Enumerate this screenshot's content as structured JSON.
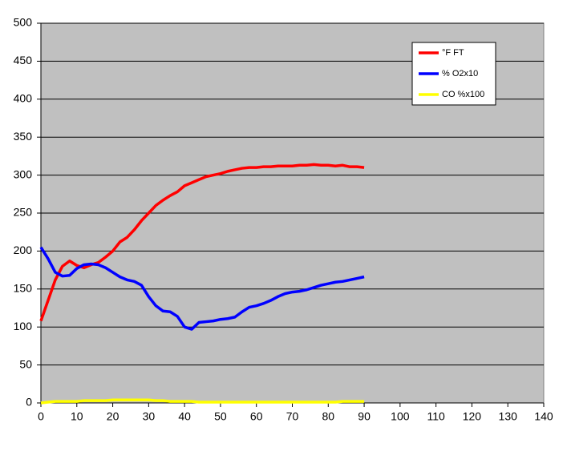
{
  "chart_data": {
    "type": "line",
    "x": [
      0,
      2,
      4,
      6,
      8,
      10,
      12,
      14,
      16,
      18,
      20,
      22,
      24,
      26,
      28,
      30,
      32,
      34,
      36,
      38,
      40,
      42,
      44,
      46,
      48,
      50,
      52,
      54,
      56,
      58,
      60,
      62,
      64,
      66,
      68,
      70,
      72,
      74,
      76,
      78,
      80,
      82,
      84,
      86,
      88,
      90
    ],
    "series": [
      {
        "name": "°F FT",
        "color": "#ff0000",
        "values": [
          108,
          135,
          162,
          180,
          187,
          181,
          178,
          182,
          185,
          192,
          200,
          212,
          218,
          228,
          240,
          250,
          260,
          267,
          273,
          278,
          286,
          290,
          294,
          298,
          300,
          302,
          305,
          307,
          309,
          310,
          310,
          311,
          311,
          312,
          312,
          312,
          313,
          313,
          314,
          313,
          313,
          312,
          313,
          311,
          311,
          310
        ]
      },
      {
        "name": "% O2x10",
        "color": "#0000ff",
        "values": [
          205,
          190,
          172,
          167,
          168,
          177,
          182,
          183,
          182,
          178,
          172,
          166,
          162,
          160,
          155,
          140,
          128,
          121,
          120,
          114,
          100,
          97,
          106,
          107,
          108,
          110,
          111,
          113,
          120,
          126,
          128,
          131,
          135,
          140,
          144,
          146,
          147,
          149,
          152,
          155,
          157,
          159,
          160,
          162,
          164,
          166
        ]
      },
      {
        "name": "CO %x100",
        "color": "#ffff00",
        "values": [
          0,
          1,
          2,
          2,
          2,
          2,
          3,
          3,
          3,
          3,
          4,
          4,
          4,
          4,
          4,
          4,
          3,
          3,
          2,
          2,
          2,
          2,
          1,
          1,
          1,
          1,
          1,
          1,
          1,
          1,
          1,
          1,
          1,
          1,
          1,
          1,
          1,
          1,
          1,
          1,
          1,
          1,
          2,
          2,
          2,
          2
        ]
      }
    ],
    "xlim": [
      0,
      140
    ],
    "xticks": [
      0,
      10,
      20,
      30,
      40,
      50,
      60,
      70,
      80,
      90,
      100,
      110,
      120,
      130,
      140
    ],
    "ylim": [
      0,
      500
    ],
    "yticks": [
      0,
      50,
      100,
      150,
      200,
      250,
      300,
      350,
      400,
      450,
      500
    ],
    "grid": true,
    "legend": "upper right"
  }
}
